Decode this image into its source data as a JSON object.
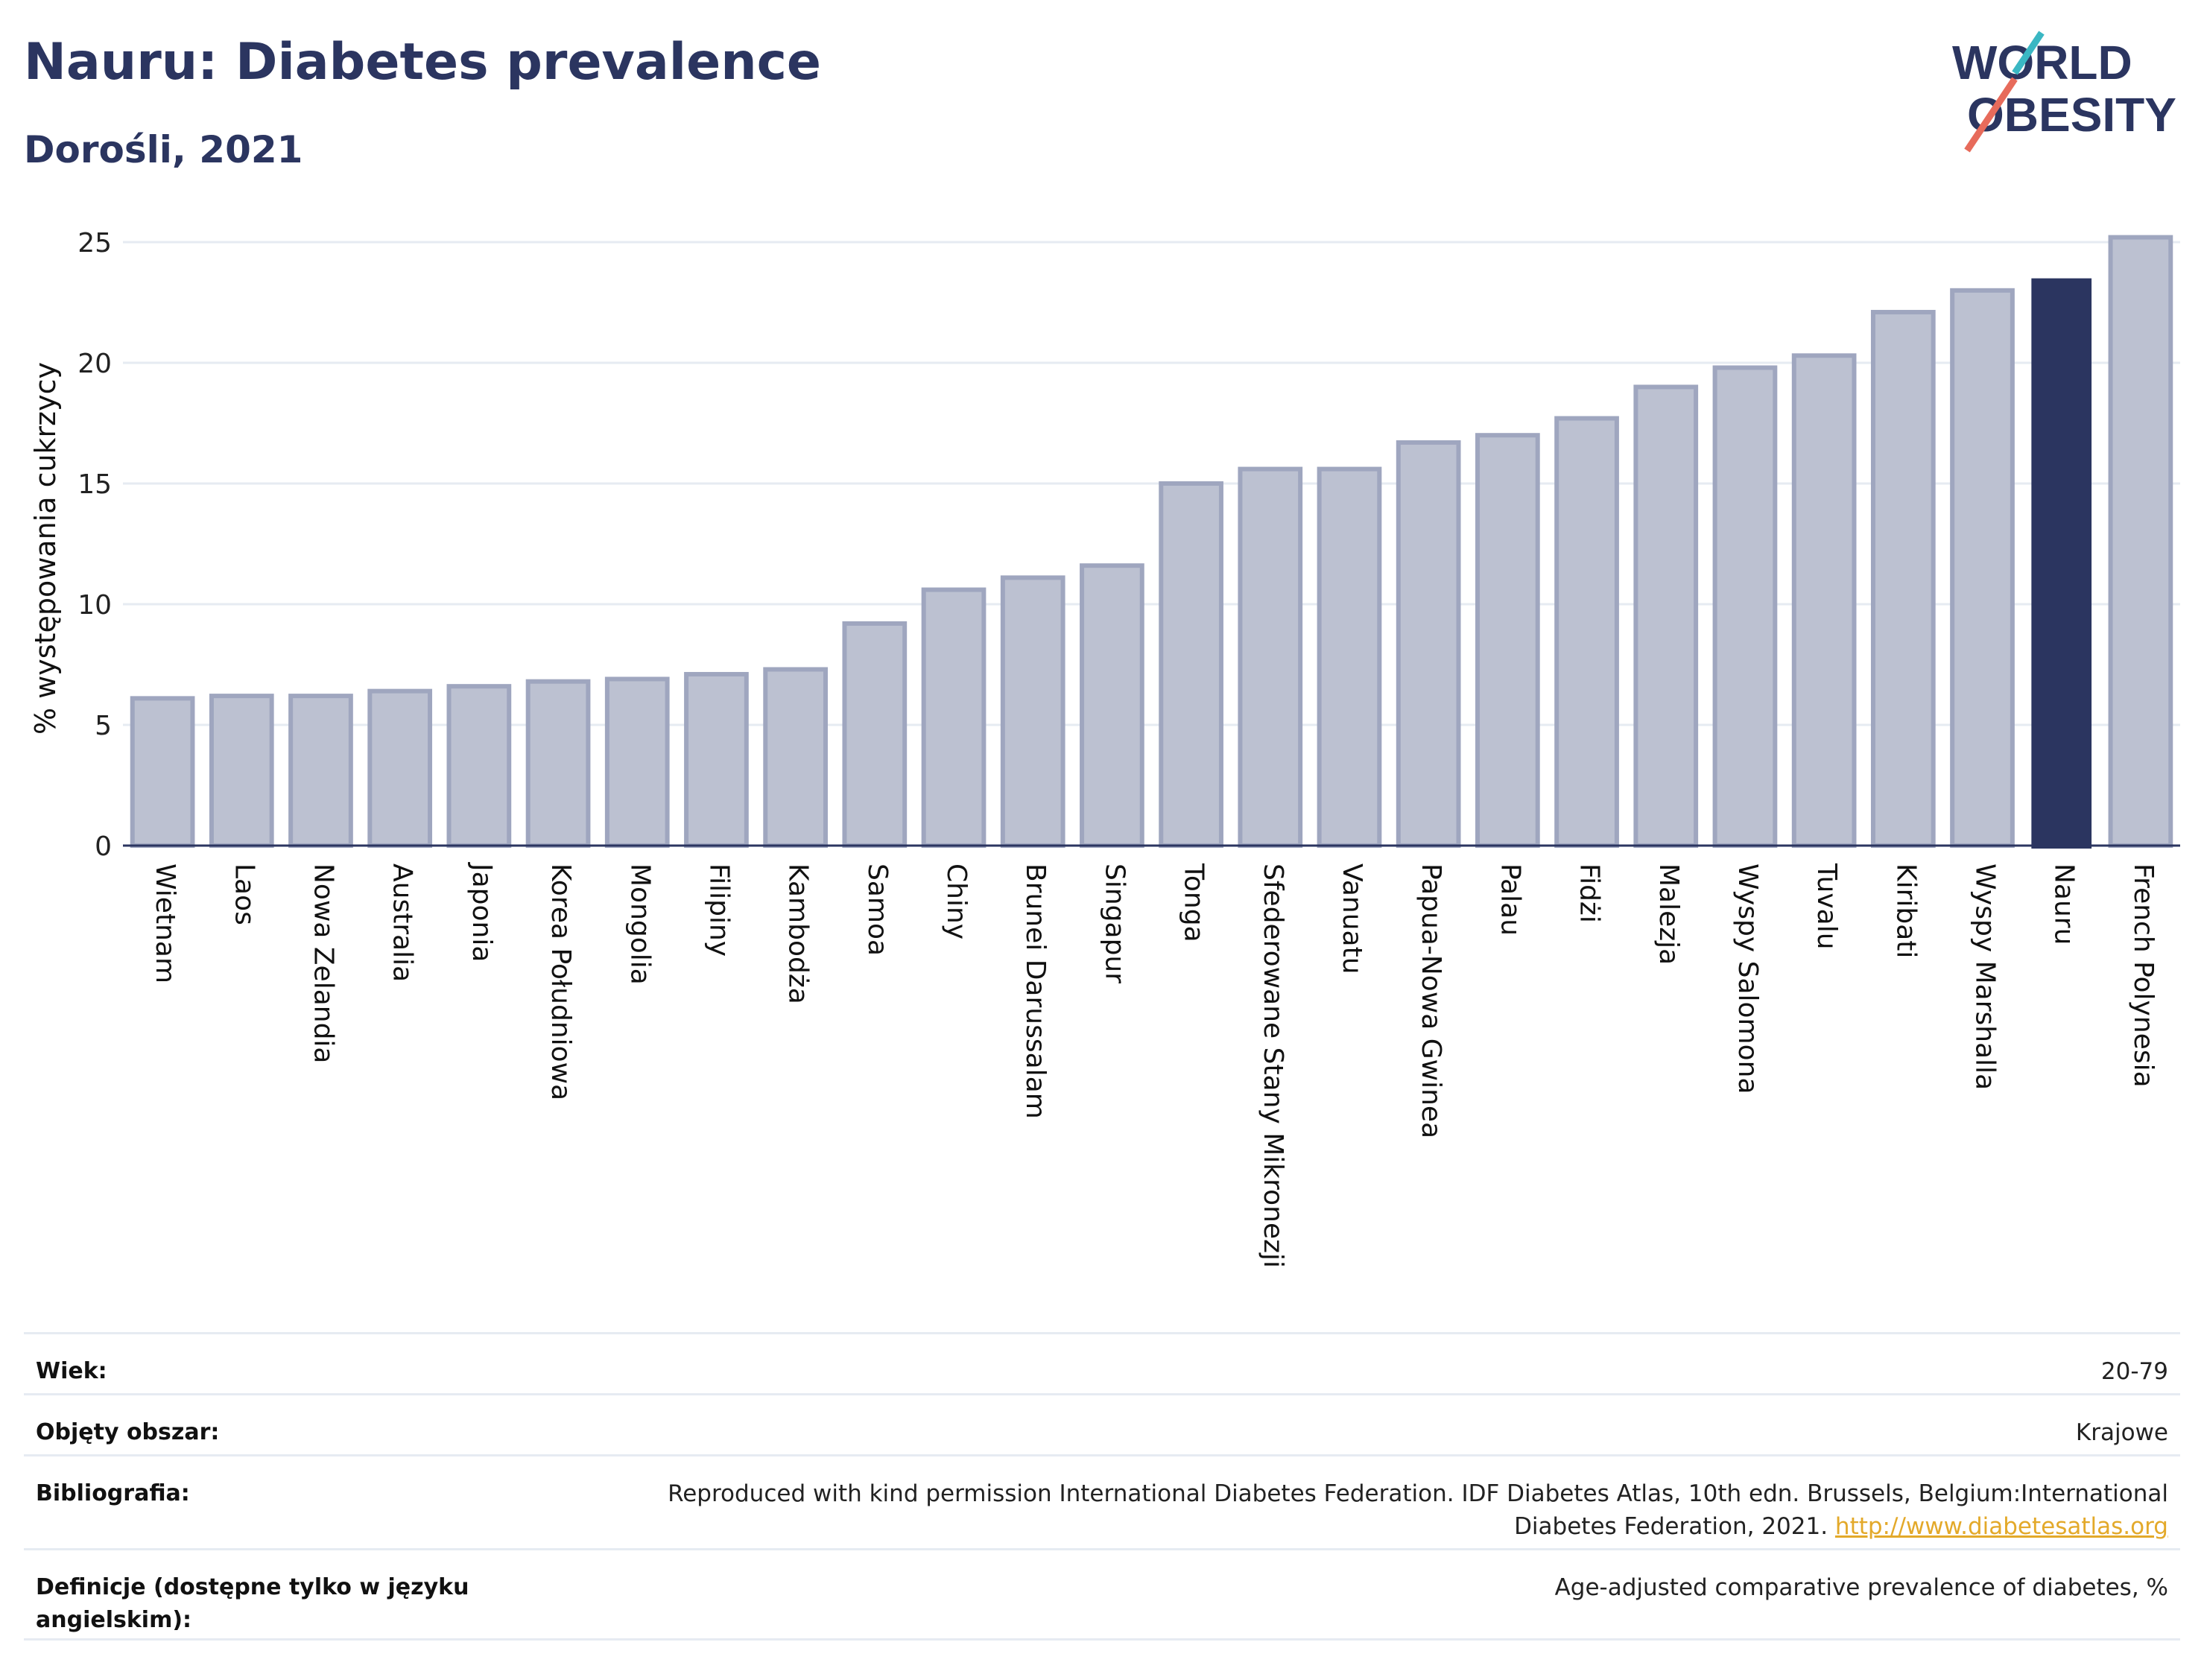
{
  "header": {
    "title": "Nauru: Diabetes prevalence",
    "subtitle": "Dorośli, 2021"
  },
  "logo": {
    "line1": "WORLD",
    "line2": "OBESITY",
    "accent_teal": "#3ab7c3",
    "accent_coral": "#e76b5b"
  },
  "chart_data": {
    "type": "bar",
    "title": "Nauru: Diabetes prevalence",
    "subtitle": "Dorośli, 2021",
    "xlabel": "",
    "ylabel": "% występowania cukrzycy",
    "ylim": [
      0,
      25.5
    ],
    "yticks": [
      0,
      5,
      10,
      15,
      20,
      25
    ],
    "grid": true,
    "categories": [
      "Wietnam",
      "Laos",
      "Nowa Zelandia",
      "Australia",
      "Japonia",
      "Korea Południowa",
      "Mongolia",
      "Filipiny",
      "Kambodża",
      "Samoa",
      "Chiny",
      "Brunei Darussalam",
      "Singapur",
      "Tonga",
      "Sfederowane Stany Mikronezji",
      "Vanuatu",
      "Papua-Nowa Gwinea",
      "Palau",
      "Fidżi",
      "Malezja",
      "Wyspy Salomona",
      "Tuvalu",
      "Kiribati",
      "Wyspy Marshalla",
      "Nauru",
      "French Polynesia"
    ],
    "values": [
      6.1,
      6.2,
      6.2,
      6.4,
      6.6,
      6.8,
      6.9,
      7.1,
      7.3,
      9.2,
      10.6,
      11.1,
      11.6,
      15.0,
      15.6,
      15.6,
      16.7,
      17.0,
      17.7,
      19.0,
      19.8,
      20.3,
      22.1,
      23.0,
      23.5,
      25.2
    ],
    "highlight": "Nauru",
    "colors": {
      "bar": "#bcc1d1",
      "bar_edge": "#9fa6bf",
      "highlight": "#2b3560",
      "axis": "#2b3560",
      "grid": "#e6ebf2"
    }
  },
  "info": [
    {
      "label": "Wiek:",
      "value": "20-79"
    },
    {
      "label": "Objęty obszar:",
      "value": "Krajowe"
    },
    {
      "label": "Bibliografia:",
      "value": "Reproduced with kind permission International Diabetes Federation.  IDF Diabetes Atlas, 10th edn. Brussels, Belgium:International Diabetes Federation, 2021. ",
      "link": "http://www.diabetesatlas.org"
    },
    {
      "label": "Definicje (dostępne tylko w języku angielskim):",
      "value": "Age-adjusted comparative prevalence of diabetes, %"
    }
  ]
}
